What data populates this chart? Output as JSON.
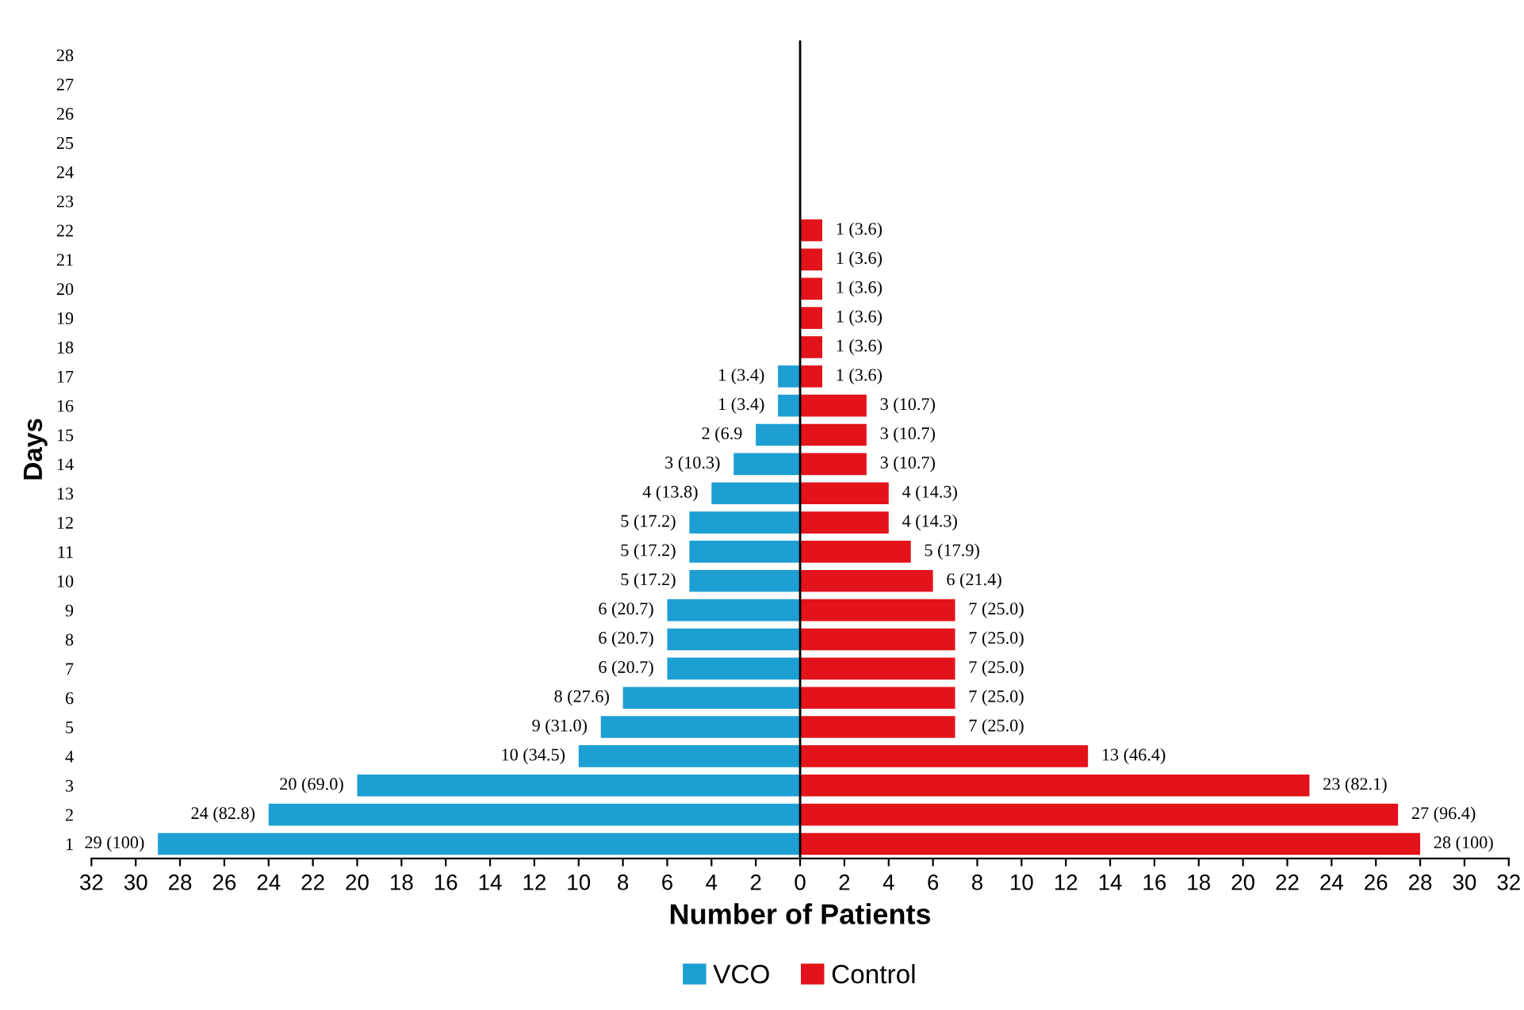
{
  "chart_data": {
    "type": "bar",
    "orientation": "horizontal",
    "xlabel": "Number of Patients",
    "ylabel": "Days",
    "categories": [
      "28",
      "27",
      "26",
      "25",
      "24",
      "23",
      "22",
      "21",
      "20",
      "19",
      "18",
      "17",
      "16",
      "15",
      "14",
      "13",
      "12",
      "11",
      "10",
      "9",
      "8",
      "7",
      "6",
      "5",
      "4",
      "3",
      "2",
      "1"
    ],
    "series": [
      {
        "name": "VCO",
        "color": "#1e9fd4",
        "values": [
          null,
          null,
          null,
          null,
          null,
          null,
          null,
          null,
          null,
          null,
          null,
          1,
          1,
          2,
          3,
          4,
          5,
          5,
          5,
          6,
          6,
          6,
          8,
          9,
          10,
          20,
          24,
          29
        ],
        "base": [
          null,
          null,
          null,
          null,
          null,
          null,
          null,
          null,
          null,
          null,
          null,
          -1,
          -1,
          -2,
          -3,
          -4,
          -5,
          -5,
          -5,
          -6,
          -6,
          -6,
          -8,
          -9,
          -10,
          -20,
          -24,
          -29
        ],
        "value_labels": [
          null,
          null,
          null,
          null,
          null,
          null,
          null,
          null,
          null,
          null,
          null,
          "1 (3.4)",
          "1 (3.4)",
          "2 (6.9",
          "3 (10.3)",
          "4 (13.8)",
          "5 (17.2)",
          "5 (17.2)",
          "5 (17.2)",
          "6 (20.7)",
          "6 (20.7)",
          "6 (20.7)",
          "8 (27.6)",
          "9 (31.0)",
          "10 (34.5)",
          "20 (69.0)",
          "24 (82.8)",
          "29 (100)"
        ]
      },
      {
        "name": "Control",
        "color": "#e3131b",
        "values": [
          null,
          null,
          null,
          null,
          null,
          null,
          1,
          1,
          1,
          1,
          1,
          1,
          3,
          3,
          3,
          4,
          4,
          5,
          6,
          7,
          7,
          7,
          7,
          7,
          13,
          23,
          27,
          28
        ],
        "value_labels": [
          null,
          null,
          null,
          null,
          null,
          null,
          "1 (3.6)",
          "1 (3.6)",
          "1 (3.6)",
          "1 (3.6)",
          "1 (3.6)",
          "1 (3.6)",
          "3 (10.7)",
          "3 (10.7)",
          "3 (10.7)",
          "4 (14.3)",
          "4 (14.3)",
          "5 (17.9)",
          "6 (21.4)",
          "7 (25.0)",
          "7 (25.0)",
          "7 (25.0)",
          "7 (25.0)",
          "7 (25.0)",
          "13 (46.4)",
          "23 (82.1)",
          "27 (96.4)",
          "28 (100)"
        ]
      }
    ],
    "xlim": [
      -32,
      32
    ],
    "xticks": [
      {
        "value": -32,
        "label": "32"
      },
      {
        "value": -30,
        "label": "30"
      },
      {
        "value": -28,
        "label": "28"
      },
      {
        "value": -26,
        "label": "26"
      },
      {
        "value": -24,
        "label": "24"
      },
      {
        "value": -22,
        "label": "22"
      },
      {
        "value": -20,
        "label": "20"
      },
      {
        "value": -18,
        "label": "18"
      },
      {
        "value": -16,
        "label": "16"
      },
      {
        "value": -14,
        "label": "14"
      },
      {
        "value": -12,
        "label": "12"
      },
      {
        "value": -10,
        "label": "10"
      },
      {
        "value": -8,
        "label": "8"
      },
      {
        "value": -6,
        "label": "6"
      },
      {
        "value": -4,
        "label": "4"
      },
      {
        "value": -2,
        "label": "2"
      },
      0,
      2,
      4,
      6,
      8,
      10,
      12,
      14,
      16,
      18,
      20,
      22,
      24,
      26,
      28,
      30,
      32
    ],
    "ref_lines": [
      {
        "axis": "x",
        "value": 0,
        "color": "#000000"
      }
    ],
    "grid": false,
    "legend": "bottom"
  }
}
